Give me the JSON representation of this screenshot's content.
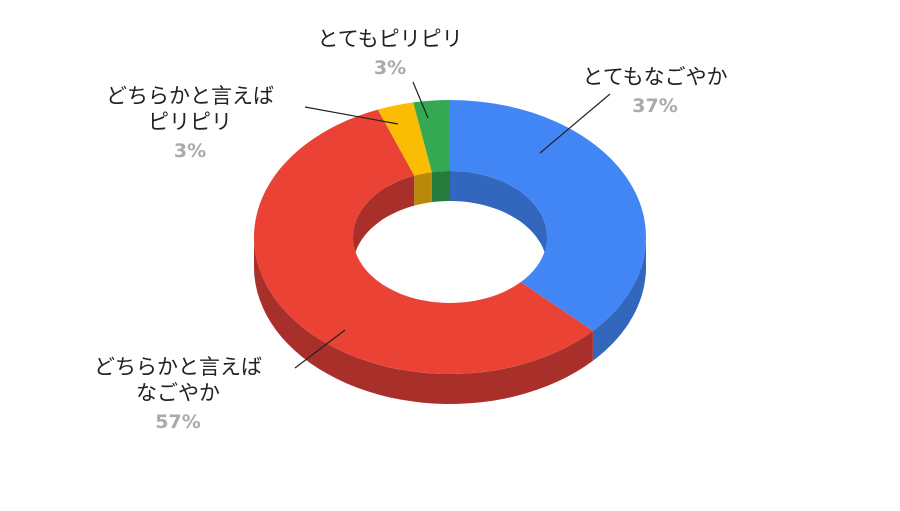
{
  "chart_data": {
    "type": "pie",
    "variant": "3d-donut",
    "title": "",
    "legend": "none",
    "slices": [
      {
        "label_lines": [
          "とてもなごやか"
        ],
        "value": 37,
        "percent_label": "37%",
        "color": "#4285F4",
        "side_color": "#3367BE"
      },
      {
        "label_lines": [
          "どちらかと言えば",
          "なごやか"
        ],
        "value": 57,
        "percent_label": "57%",
        "color": "#EA4335",
        "side_color": "#A9302A"
      },
      {
        "label_lines": [
          "どちらかと言えば",
          "ピリピリ"
        ],
        "value": 3,
        "percent_label": "3%",
        "color": "#FBBC04",
        "side_color": "#B8890A"
      },
      {
        "label_lines": [
          "とてもピリピリ"
        ],
        "value": 3,
        "percent_label": "3%",
        "color": "#34A853",
        "side_color": "#267A3C"
      }
    ]
  }
}
